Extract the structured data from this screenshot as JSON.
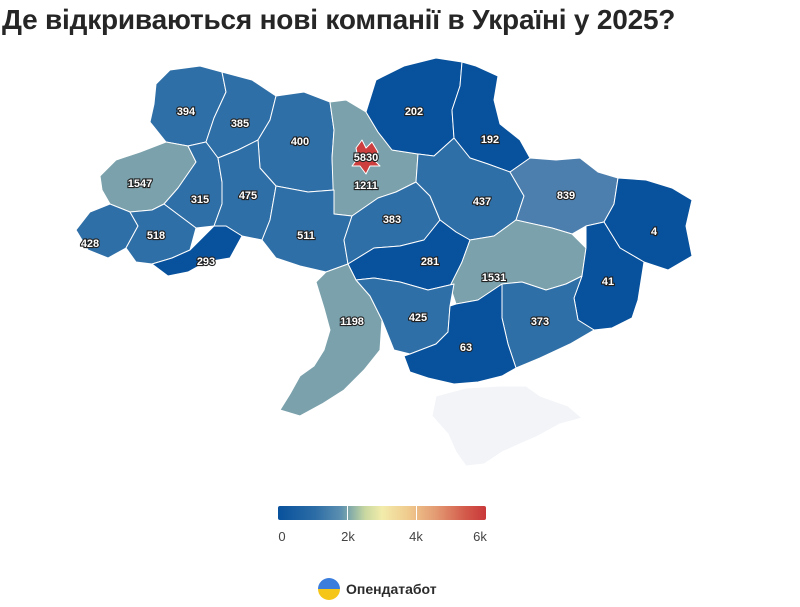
{
  "title": "Де відкриваються нові компанії в Україні у 2025?",
  "colors": {
    "low": "#08519c",
    "mid_blue": "#2f6fa7",
    "light_blue": "#4d7fae",
    "teal": "#7aa1ac",
    "red": "#cd3f3f",
    "crimea": "#f2f4f8"
  },
  "chart_data": {
    "type": "choropleth",
    "title": "Де відкриваються нові компанії в Україні у 2025?",
    "regions": [
      {
        "id": "volyn",
        "value": 394
      },
      {
        "id": "rivne",
        "value": 385
      },
      {
        "id": "zhytomyr",
        "value": 400
      },
      {
        "id": "kyiv-oblast",
        "value": 1211
      },
      {
        "id": "kyiv-city",
        "value": 5830
      },
      {
        "id": "chernihiv",
        "value": 202
      },
      {
        "id": "sumy",
        "value": 192
      },
      {
        "id": "lviv",
        "value": 1547
      },
      {
        "id": "ternopil",
        "value": 315
      },
      {
        "id": "khmelnytskyi",
        "value": 475
      },
      {
        "id": "vinnytsia",
        "value": 511
      },
      {
        "id": "cherkasy",
        "value": 383
      },
      {
        "id": "poltava",
        "value": 437
      },
      {
        "id": "kharkiv",
        "value": 839
      },
      {
        "id": "luhansk",
        "value": 4
      },
      {
        "id": "zakarpattia",
        "value": 428
      },
      {
        "id": "ivano-frankivsk",
        "value": 518
      },
      {
        "id": "chernivtsi",
        "value": 293
      },
      {
        "id": "kirovohrad",
        "value": 281
      },
      {
        "id": "dnipropetrovsk",
        "value": 1531
      },
      {
        "id": "donetsk",
        "value": 41
      },
      {
        "id": "odesa",
        "value": 1198
      },
      {
        "id": "mykolaiv",
        "value": 425
      },
      {
        "id": "zaporizhzhia",
        "value": 373
      },
      {
        "id": "kherson",
        "value": 63
      },
      {
        "id": "crimea",
        "value": null
      }
    ],
    "legend": {
      "ticks": [
        "0",
        "2k",
        "4k",
        "6k"
      ],
      "tick_values": [
        0,
        2000,
        4000,
        6000
      ],
      "range": [
        0,
        6000
      ]
    }
  },
  "brand": {
    "name": "Опендатабот"
  }
}
